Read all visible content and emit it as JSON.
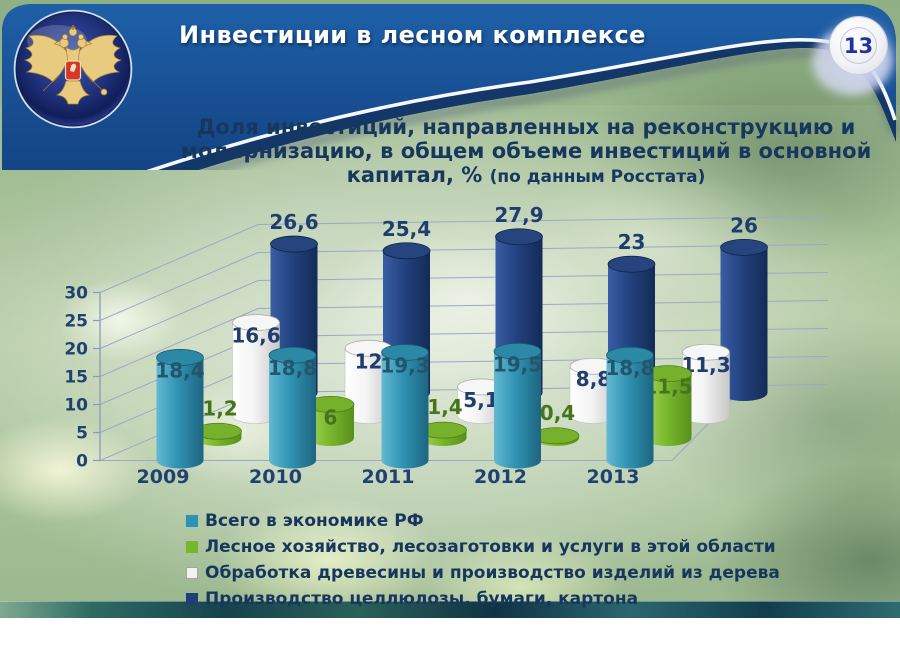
{
  "header": {
    "title": "Инвестиции в лесном комплексе",
    "page_number": "13"
  },
  "subtitle": {
    "line1": "Доля инвестиций, направленных на реконструкцию и",
    "line2": "модернизацию, в общем объеме инвестиций в основной",
    "line3": "капитал, %",
    "note": "(по данным Росстата)"
  },
  "chart_data": {
    "type": "bar",
    "style": "3d-cylinders",
    "title": "Доля инвестиций, направленных на реконструкцию и модернизацию, в общем объеме инвестиций в основной капитал, % (по данным Росстата)",
    "xlabel": "",
    "ylabel": "",
    "categories": [
      "2009",
      "2010",
      "2011",
      "2012",
      "2013"
    ],
    "yticks": [
      0,
      5,
      10,
      15,
      20,
      25,
      30
    ],
    "ylim": [
      0,
      30
    ],
    "grid": true,
    "legend_position": "bottom-left",
    "series": [
      {
        "name": "Всего в экономике РФ",
        "values": [
          18.4,
          18.8,
          19.3,
          19.5,
          18.8
        ],
        "labels": [
          "18,4",
          "18,8",
          "19,3",
          "19,5",
          "18,8"
        ],
        "color": "#2E93B3",
        "label_color": "#24556B",
        "gradient": [
          "#63B9D2",
          "#2F93B4",
          "#1E6580"
        ],
        "cap": "#2C89A6",
        "cap_stroke": "#1A5A70",
        "swatch_border": "transparent"
      },
      {
        "name": "Лесное хозяйство, лесозаготовки и услуги в этой области",
        "values": [
          1.2,
          6,
          1.4,
          0.4,
          11.5
        ],
        "labels": [
          "1,2",
          "6",
          "1,4",
          "0,4",
          "11,5"
        ],
        "color": "#76B82A",
        "label_color": "#46741D",
        "gradient": [
          "#A6D65B",
          "#7BB92F",
          "#57901B"
        ],
        "cap": "#76B12B",
        "cap_stroke": "#4F7F17",
        "swatch_border": "transparent"
      },
      {
        "name": "Обработка древесины и производство изделий из дерева",
        "values": [
          16.6,
          12,
          5.1,
          8.8,
          11.3
        ],
        "labels": [
          "16,6",
          "12",
          "5,1",
          "8,8",
          "11,3"
        ],
        "color": "#F2F2F2",
        "label_color": "#1F3E6E",
        "gradient": [
          "#FFFFFF",
          "#F4F4F4",
          "#C8C8C8"
        ],
        "cap": "#F6F6F6",
        "cap_stroke": "#ADADAD",
        "swatch_border": "#A6A6A6"
      },
      {
        "name": "Производство целлюлозы, бумаги, картона",
        "values": [
          26.6,
          25.4,
          27.9,
          23,
          26
        ],
        "labels": [
          "26,6",
          "25,4",
          "27,9",
          "23",
          "26"
        ],
        "color": "#1F3E75",
        "label_color": "#1F3E6E",
        "gradient": [
          "#3A5EA5",
          "#22427F",
          "#132B57"
        ],
        "cap": "#26457F",
        "cap_stroke": "#0F2347",
        "swatch_border": "transparent"
      }
    ]
  }
}
